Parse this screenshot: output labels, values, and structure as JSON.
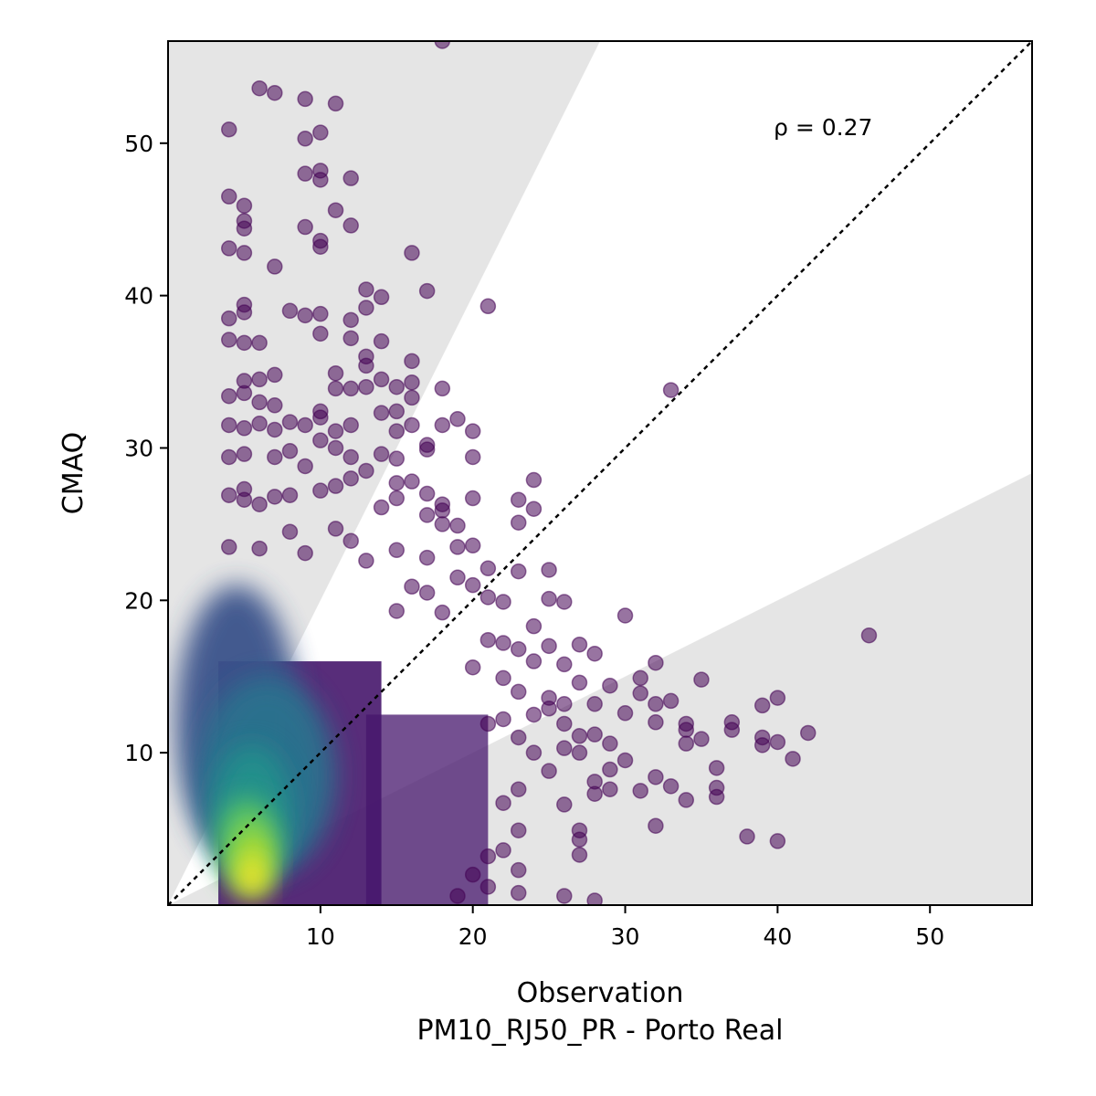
{
  "chart_data": {
    "type": "scatter",
    "title": "",
    "xlabel": "Observation",
    "xlabel_sub": "PM10_RJ50_PR - Porto Real",
    "ylabel": "CMAQ",
    "xlim": [
      0,
      56.7
    ],
    "ylim": [
      0,
      56.7
    ],
    "xticks": [
      10,
      20,
      30,
      40,
      50
    ],
    "yticks": [
      10,
      20,
      30,
      40,
      50
    ],
    "annotation": "ρ = 0.27",
    "reference_line": "1:1",
    "shaded_regions": "outside factor-of-2 band (y > 2x and y < x/2)",
    "colormap": "viridis (point density)",
    "points": [
      [
        18,
        56.7
      ],
      [
        6,
        53.6
      ],
      [
        7,
        53.3
      ],
      [
        9,
        52.9
      ],
      [
        11,
        52.6
      ],
      [
        4,
        50.9
      ],
      [
        10,
        50.7
      ],
      [
        9,
        50.3
      ],
      [
        4,
        46.5
      ],
      [
        5,
        45.9
      ],
      [
        5,
        44.9
      ],
      [
        5,
        44.4
      ],
      [
        9,
        44.5
      ],
      [
        11,
        45.6
      ],
      [
        12,
        44.6
      ],
      [
        9,
        48.0
      ],
      [
        10,
        48.2
      ],
      [
        10,
        47.6
      ],
      [
        12,
        47.7
      ],
      [
        4,
        43.1
      ],
      [
        5,
        42.8
      ],
      [
        10,
        43.6
      ],
      [
        10,
        43.2
      ],
      [
        7,
        41.9
      ],
      [
        16,
        42.8
      ],
      [
        17,
        40.3
      ],
      [
        21,
        39.3
      ],
      [
        13,
        40.4
      ],
      [
        14,
        39.9
      ],
      [
        5,
        39.4
      ],
      [
        5,
        38.9
      ],
      [
        4,
        38.5
      ],
      [
        8,
        39.0
      ],
      [
        9,
        38.7
      ],
      [
        10,
        38.8
      ],
      [
        12,
        38.4
      ],
      [
        13,
        39.2
      ],
      [
        4,
        37.1
      ],
      [
        5,
        36.9
      ],
      [
        6,
        36.9
      ],
      [
        10,
        37.5
      ],
      [
        12,
        37.2
      ],
      [
        14,
        37.0
      ],
      [
        13,
        36.0
      ],
      [
        16,
        35.7
      ],
      [
        13,
        35.4
      ],
      [
        5,
        34.4
      ],
      [
        6,
        34.5
      ],
      [
        7,
        34.8
      ],
      [
        11,
        34.9
      ],
      [
        14,
        34.5
      ],
      [
        16,
        34.3
      ],
      [
        18,
        33.9
      ],
      [
        4,
        33.4
      ],
      [
        5,
        33.6
      ],
      [
        6,
        33.0
      ],
      [
        7,
        32.8
      ],
      [
        10,
        32.4
      ],
      [
        10,
        32.0
      ],
      [
        12,
        33.9
      ],
      [
        13,
        34.0
      ],
      [
        15,
        34.0
      ],
      [
        16,
        33.3
      ],
      [
        33,
        33.8
      ],
      [
        11,
        33.9
      ],
      [
        4,
        31.5
      ],
      [
        5,
        31.3
      ],
      [
        6,
        31.6
      ],
      [
        7,
        31.2
      ],
      [
        8,
        31.7
      ],
      [
        9,
        31.5
      ],
      [
        11,
        31.1
      ],
      [
        12,
        31.5
      ],
      [
        14,
        32.3
      ],
      [
        15,
        32.4
      ],
      [
        15,
        31.1
      ],
      [
        16,
        31.5
      ],
      [
        18,
        31.5
      ],
      [
        19,
        31.9
      ],
      [
        20,
        31.1
      ],
      [
        4,
        29.4
      ],
      [
        5,
        29.6
      ],
      [
        7,
        29.4
      ],
      [
        8,
        29.8
      ],
      [
        9,
        28.8
      ],
      [
        10,
        30.5
      ],
      [
        11,
        30.0
      ],
      [
        12,
        29.4
      ],
      [
        14,
        29.6
      ],
      [
        15,
        29.3
      ],
      [
        17,
        30.2
      ],
      [
        17,
        29.9
      ],
      [
        20,
        29.4
      ],
      [
        12,
        28.0
      ],
      [
        13,
        28.5
      ],
      [
        11,
        27.5
      ],
      [
        15,
        27.7
      ],
      [
        16,
        27.8
      ],
      [
        17,
        27.0
      ],
      [
        18,
        26.3
      ],
      [
        20,
        26.7
      ],
      [
        23,
        26.6
      ],
      [
        24,
        27.9
      ],
      [
        4,
        26.9
      ],
      [
        5,
        27.3
      ],
      [
        5,
        26.6
      ],
      [
        6,
        26.3
      ],
      [
        7,
        26.8
      ],
      [
        8,
        26.9
      ],
      [
        10,
        27.2
      ],
      [
        14,
        26.1
      ],
      [
        15,
        26.7
      ],
      [
        17,
        25.6
      ],
      [
        18,
        25.9
      ],
      [
        18,
        25.0
      ],
      [
        19,
        24.9
      ],
      [
        23,
        25.1
      ],
      [
        24,
        26.0
      ],
      [
        19,
        23.5
      ],
      [
        20,
        23.6
      ],
      [
        15,
        23.3
      ],
      [
        17,
        22.8
      ],
      [
        21,
        22.1
      ],
      [
        23,
        21.9
      ],
      [
        25,
        22.0
      ],
      [
        4,
        23.5
      ],
      [
        6,
        23.4
      ],
      [
        8,
        24.5
      ],
      [
        9,
        23.1
      ],
      [
        11,
        24.7
      ],
      [
        12,
        23.9
      ],
      [
        13,
        22.6
      ],
      [
        19,
        21.5
      ],
      [
        20,
        21.0
      ],
      [
        16,
        20.9
      ],
      [
        17,
        20.5
      ],
      [
        21,
        20.2
      ],
      [
        22,
        19.9
      ],
      [
        25,
        20.1
      ],
      [
        26,
        19.9
      ],
      [
        30,
        19.0
      ],
      [
        15,
        19.3
      ],
      [
        18,
        19.2
      ],
      [
        24,
        18.3
      ],
      [
        25,
        17.0
      ],
      [
        27,
        17.1
      ],
      [
        28,
        16.5
      ],
      [
        32,
        15.9
      ],
      [
        21,
        17.4
      ],
      [
        22,
        17.2
      ],
      [
        23,
        16.8
      ],
      [
        24,
        16.0
      ],
      [
        26,
        15.8
      ],
      [
        27,
        14.6
      ],
      [
        29,
        14.4
      ],
      [
        31,
        14.9
      ],
      [
        35,
        14.8
      ],
      [
        20,
        15.6
      ],
      [
        22,
        14.9
      ],
      [
        23,
        14.0
      ],
      [
        25,
        13.6
      ],
      [
        28,
        13.2
      ],
      [
        31,
        13.9
      ],
      [
        32,
        13.2
      ],
      [
        33,
        13.4
      ],
      [
        39,
        13.1
      ],
      [
        40,
        13.6
      ],
      [
        46,
        17.7
      ],
      [
        34,
        11.9
      ],
      [
        34,
        11.5
      ],
      [
        37,
        12.0
      ],
      [
        37,
        11.5
      ],
      [
        32,
        12.0
      ],
      [
        30,
        12.6
      ],
      [
        42,
        11.3
      ],
      [
        39,
        11.0
      ],
      [
        39,
        10.5
      ],
      [
        40,
        10.7
      ],
      [
        41,
        9.6
      ],
      [
        34,
        10.6
      ],
      [
        35,
        10.9
      ],
      [
        36,
        9.0
      ],
      [
        36,
        7.7
      ],
      [
        36,
        7.1
      ],
      [
        33,
        7.8
      ],
      [
        32,
        8.4
      ],
      [
        34,
        6.9
      ],
      [
        31,
        7.5
      ],
      [
        29,
        10.6
      ],
      [
        28,
        11.2
      ],
      [
        30,
        9.5
      ],
      [
        27,
        10.0
      ],
      [
        29,
        8.9
      ],
      [
        28,
        8.1
      ],
      [
        29,
        7.6
      ],
      [
        28,
        7.3
      ],
      [
        27,
        11.1
      ],
      [
        26,
        10.3
      ],
      [
        26,
        11.9
      ],
      [
        32,
        5.2
      ],
      [
        38,
        4.5
      ],
      [
        40,
        4.2
      ],
      [
        27,
        4.9
      ],
      [
        27,
        4.3
      ],
      [
        27,
        3.3
      ],
      [
        26,
        6.6
      ],
      [
        25,
        8.8
      ],
      [
        23,
        7.6
      ],
      [
        22,
        6.7
      ],
      [
        23,
        4.9
      ],
      [
        22,
        3.6
      ],
      [
        21,
        3.2
      ],
      [
        23,
        2.3
      ],
      [
        23,
        0.8
      ],
      [
        26,
        0.6
      ],
      [
        28,
        0.3
      ],
      [
        20,
        2.0
      ],
      [
        21,
        1.2
      ],
      [
        19,
        0.6
      ],
      [
        24,
        12.5
      ],
      [
        24,
        10.0
      ],
      [
        25,
        12.9
      ],
      [
        26,
        13.2
      ],
      [
        22,
        12.2
      ],
      [
        21,
        11.9
      ],
      [
        23,
        11.0
      ]
    ],
    "density_blobs": [
      {
        "x": 4.5,
        "y": 12,
        "rx": 4.0,
        "ry": 9.0,
        "color": "#3b528b"
      },
      {
        "x": 6.5,
        "y": 8.5,
        "rx": 4.5,
        "ry": 6.5,
        "color": "#2c728e"
      },
      {
        "x": 5.5,
        "y": 6.0,
        "rx": 2.6,
        "ry": 4.5,
        "color": "#21918c"
      },
      {
        "x": 5.2,
        "y": 4.0,
        "rx": 1.9,
        "ry": 3.0,
        "color": "#5ec962"
      },
      {
        "x": 5.6,
        "y": 3.0,
        "rx": 1.3,
        "ry": 2.2,
        "color": "#addc30"
      },
      {
        "x": 5.5,
        "y": 1.8,
        "rx": 1.0,
        "ry": 1.3,
        "color": "#fde725"
      }
    ]
  }
}
